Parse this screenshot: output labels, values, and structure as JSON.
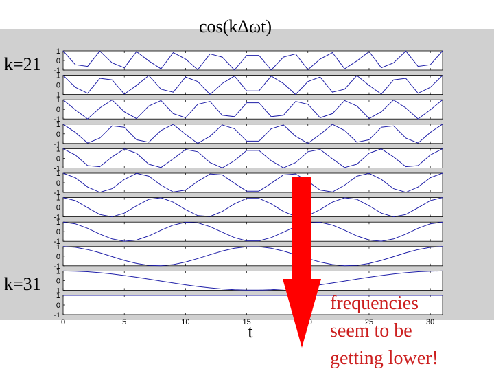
{
  "chart_data": {
    "type": "line",
    "title": "cos(kΔωt)",
    "xlabel": "t",
    "xlim": [
      0,
      31
    ],
    "ylim": [
      -1,
      1
    ],
    "x": [
      0,
      1,
      2,
      3,
      4,
      5,
      6,
      7,
      8,
      9,
      10,
      11,
      12,
      13,
      14,
      15,
      16,
      17,
      18,
      19,
      20,
      21,
      22,
      23,
      24,
      25,
      26,
      27,
      28,
      29,
      30,
      31
    ],
    "omega_step": 0.2026834,
    "x_tick_labels": [
      "0",
      "5",
      "10",
      "15",
      "20",
      "25",
      "30"
    ],
    "y_tick_labels": [
      "1",
      "0",
      "-1"
    ],
    "series": [
      {
        "k": 21
      },
      {
        "k": 22
      },
      {
        "k": 23
      },
      {
        "k": 24
      },
      {
        "k": 25
      },
      {
        "k": 26
      },
      {
        "k": 27
      },
      {
        "k": 28
      },
      {
        "k": 29
      },
      {
        "k": 30
      },
      {
        "k": 31
      }
    ],
    "top_row_label": "k=21",
    "bottom_row_label": "k=31",
    "line_color": "#1f1fa8",
    "panel_bg": "#d0d0d0",
    "arrow_color": "#ff0000"
  },
  "annotation": {
    "lines": [
      "frequencies",
      "seem to be",
      "getting lower!"
    ],
    "color": "#cc1f1f"
  }
}
